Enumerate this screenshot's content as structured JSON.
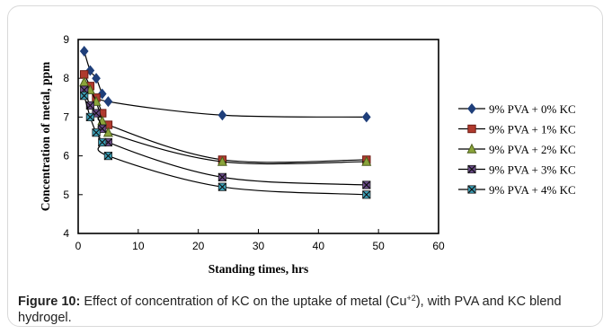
{
  "chart_data": {
    "type": "line",
    "xlabel": "Standing times, hrs",
    "ylabel": "Concentration of metal, ppm",
    "xlim": [
      0,
      60
    ],
    "ylim": [
      4,
      9
    ],
    "xticks": [
      0,
      10,
      20,
      30,
      40,
      50,
      60
    ],
    "yticks": [
      4,
      5,
      6,
      7,
      8,
      9
    ],
    "grid": false,
    "legend_position": "right",
    "series": [
      {
        "name": "9% PVA + 0% KC",
        "marker": "diamond",
        "marker_color": "#1f3f7a",
        "x": [
          1,
          2,
          3,
          4,
          5,
          24,
          48
        ],
        "y": [
          8.7,
          8.2,
          8.0,
          7.6,
          7.4,
          7.05,
          7.0
        ]
      },
      {
        "name": "9% PVA + 1% KC",
        "marker": "square",
        "marker_color": "#b03a2e",
        "x": [
          1,
          2,
          3,
          4,
          5,
          24,
          48
        ],
        "y": [
          8.1,
          7.8,
          7.5,
          7.1,
          6.8,
          5.9,
          5.9
        ]
      },
      {
        "name": "9% PVA + 2% KC",
        "marker": "triangle",
        "marker_color": "#8aa43a",
        "x": [
          1,
          2,
          3,
          4,
          5,
          24,
          48
        ],
        "y": [
          7.9,
          7.7,
          7.4,
          6.9,
          6.6,
          5.85,
          5.85
        ]
      },
      {
        "name": "9% PVA + 3% KC",
        "marker": "xsquare",
        "marker_color": "#6b4a8a",
        "x": [
          1,
          2,
          3,
          4,
          5,
          24,
          48
        ],
        "y": [
          7.7,
          7.3,
          7.1,
          6.7,
          6.35,
          5.45,
          5.25
        ]
      },
      {
        "name": "9% PVA + 4% KC",
        "marker": "xsquare",
        "marker_color": "#3aa0b8",
        "x": [
          1,
          2,
          3,
          4,
          5,
          24,
          48
        ],
        "y": [
          7.55,
          7.0,
          6.6,
          6.35,
          6.0,
          5.2,
          5.0
        ]
      }
    ]
  },
  "caption": {
    "label": "Figure 10:",
    "text_before_sup": " Effect of concentration of KC on the uptake of metal (Cu",
    "superscript": "+2",
    "text_after_sup": "), with PVA and KC blend hydrogel."
  }
}
